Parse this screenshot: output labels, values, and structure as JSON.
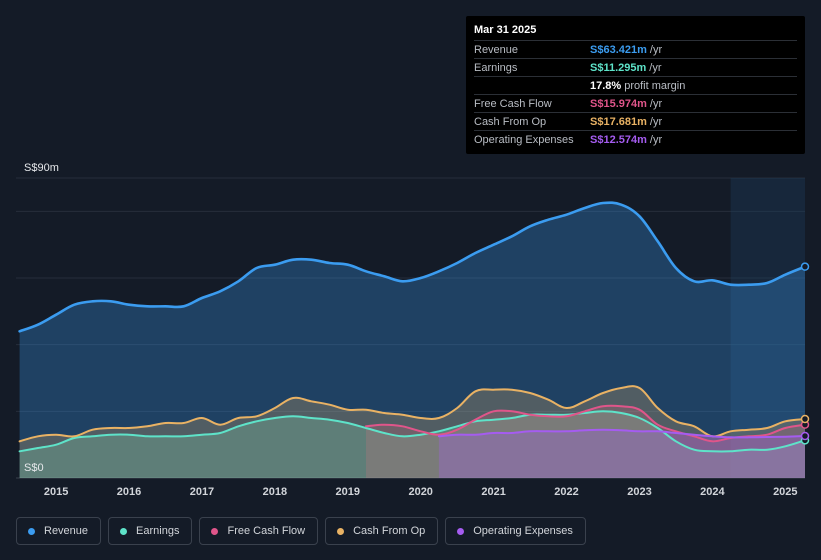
{
  "tooltip": {
    "date": "Mar 31 2025",
    "rows": [
      {
        "label": "Revenue",
        "value": "S$63.421m",
        "unit": "/yr",
        "color": "#3b9cf0"
      },
      {
        "label": "Earnings",
        "value": "S$11.295m",
        "unit": "/yr",
        "color": "#5ee3c9"
      },
      {
        "label": "",
        "value": "17.8%",
        "unit": "profit margin",
        "color": "#ffffff"
      },
      {
        "label": "Free Cash Flow",
        "value": "S$15.974m",
        "unit": "/yr",
        "color": "#e0558a"
      },
      {
        "label": "Cash From Op",
        "value": "S$17.681m",
        "unit": "/yr",
        "color": "#e9b264"
      },
      {
        "label": "Operating Expenses",
        "value": "S$12.574m",
        "unit": "/yr",
        "color": "#a55cf0"
      }
    ]
  },
  "legend": [
    {
      "label": "Revenue",
      "color": "#3b9cf0"
    },
    {
      "label": "Earnings",
      "color": "#5ee3c9"
    },
    {
      "label": "Free Cash Flow",
      "color": "#e0558a"
    },
    {
      "label": "Cash From Op",
      "color": "#e9b264"
    },
    {
      "label": "Operating Expenses",
      "color": "#a55cf0"
    }
  ],
  "chart_data": {
    "type": "area",
    "title": "",
    "xlabel": "",
    "ylabel": "",
    "ylim": [
      0,
      90
    ],
    "xlim": [
      2014.45,
      2025.27
    ],
    "y_tick_labels": [
      {
        "value": 90,
        "label": "S$90m"
      },
      {
        "value": 0,
        "label": "S$0"
      }
    ],
    "x_tick_labels": [
      "2015",
      "2016",
      "2017",
      "2018",
      "2019",
      "2020",
      "2021",
      "2022",
      "2023",
      "2024",
      "2025"
    ],
    "x_ticks": [
      2015,
      2016,
      2017,
      2018,
      2019,
      2020,
      2021,
      2022,
      2023,
      2024,
      2025
    ],
    "forecast_region_start": 2024.25,
    "series": [
      {
        "name": "Revenue",
        "color": "#3b9cf0",
        "x": [
          2014.5,
          2014.75,
          2015.0,
          2015.25,
          2015.5,
          2015.75,
          2016.0,
          2016.25,
          2016.5,
          2016.75,
          2017.0,
          2017.25,
          2017.5,
          2017.75,
          2018.0,
          2018.25,
          2018.5,
          2018.75,
          2019.0,
          2019.25,
          2019.5,
          2019.75,
          2020.0,
          2020.25,
          2020.5,
          2020.75,
          2021.0,
          2021.25,
          2021.5,
          2021.75,
          2022.0,
          2022.25,
          2022.5,
          2022.75,
          2023.0,
          2023.25,
          2023.5,
          2023.75,
          2024.0,
          2024.25,
          2024.5,
          2024.75,
          2025.0,
          2025.27
        ],
        "values": [
          44,
          46,
          49,
          52,
          53,
          53,
          52,
          51.5,
          51.5,
          51.5,
          54,
          56,
          59,
          63,
          64,
          65.5,
          65.5,
          64.5,
          64,
          62,
          60.5,
          59,
          60,
          62,
          64.5,
          67.5,
          70,
          72.5,
          75.5,
          77.5,
          79,
          81,
          82.5,
          82,
          78.5,
          71,
          63,
          59,
          59.3,
          58,
          58,
          58.5,
          61,
          63.4
        ]
      },
      {
        "name": "Earnings",
        "color": "#5ee3c9",
        "x": [
          2014.5,
          2014.75,
          2015.0,
          2015.25,
          2015.5,
          2015.75,
          2016.0,
          2016.25,
          2016.5,
          2016.75,
          2017.0,
          2017.25,
          2017.5,
          2017.75,
          2018.0,
          2018.25,
          2018.5,
          2018.75,
          2019.0,
          2019.25,
          2019.5,
          2019.75,
          2020.0,
          2020.25,
          2020.5,
          2020.75,
          2021.0,
          2021.25,
          2021.5,
          2021.75,
          2022.0,
          2022.25,
          2022.5,
          2022.75,
          2023.0,
          2023.25,
          2023.5,
          2023.75,
          2024.0,
          2024.25,
          2024.5,
          2024.75,
          2025.0,
          2025.27
        ],
        "values": [
          8,
          9,
          10,
          12,
          12.5,
          13,
          13,
          12.5,
          12.5,
          12.5,
          13,
          13.5,
          15.5,
          17,
          18,
          18.5,
          18,
          17.5,
          16.5,
          15,
          13.5,
          12.5,
          13,
          14,
          15.5,
          17,
          17.5,
          18,
          19,
          19,
          19,
          19.5,
          20,
          19.5,
          18,
          15,
          11,
          8.5,
          8,
          8,
          8.5,
          8.5,
          9.5,
          11.3
        ]
      },
      {
        "name": "Free Cash Flow",
        "color": "#e0558a",
        "x": [
          2019.25,
          2019.5,
          2019.75,
          2020.0,
          2020.25,
          2020.5,
          2020.75,
          2021.0,
          2021.25,
          2021.5,
          2021.75,
          2022.0,
          2022.25,
          2022.5,
          2022.75,
          2023.0,
          2023.25,
          2023.5,
          2023.75,
          2024.0,
          2024.25,
          2024.5,
          2024.75,
          2025.0,
          2025.27
        ],
        "values": [
          15.5,
          16,
          15.5,
          14,
          13,
          14.5,
          17.5,
          20,
          20,
          19,
          18.5,
          18.5,
          20,
          21.5,
          21.5,
          20.5,
          16,
          14,
          12.5,
          11,
          12,
          12.5,
          13,
          15,
          16
        ]
      },
      {
        "name": "Cash From Op",
        "color": "#e9b264",
        "x": [
          2014.5,
          2014.75,
          2015.0,
          2015.25,
          2015.5,
          2015.75,
          2016.0,
          2016.25,
          2016.5,
          2016.75,
          2017.0,
          2017.25,
          2017.5,
          2017.75,
          2018.0,
          2018.25,
          2018.5,
          2018.75,
          2019.0,
          2019.25,
          2019.5,
          2019.75,
          2020.0,
          2020.25,
          2020.5,
          2020.75,
          2021.0,
          2021.25,
          2021.5,
          2021.75,
          2022.0,
          2022.25,
          2022.5,
          2022.75,
          2023.0,
          2023.25,
          2023.5,
          2023.75,
          2024.0,
          2024.25,
          2024.5,
          2024.75,
          2025.0,
          2025.27
        ],
        "values": [
          11,
          12.5,
          13,
          12.5,
          14.5,
          15,
          15,
          15.5,
          16.5,
          16.5,
          18,
          16,
          18,
          18.5,
          21,
          24,
          23,
          22,
          20.5,
          20.5,
          19.5,
          19,
          18,
          18,
          21,
          26,
          26.5,
          26.5,
          25.5,
          23.5,
          21,
          23,
          25.5,
          27,
          27,
          21,
          17,
          15.5,
          12.5,
          14,
          14.5,
          15,
          17,
          17.7
        ]
      },
      {
        "name": "Operating Expenses",
        "color": "#a55cf0",
        "x": [
          2020.25,
          2020.5,
          2020.75,
          2021.0,
          2021.25,
          2021.5,
          2021.75,
          2022.0,
          2022.25,
          2022.5,
          2022.75,
          2023.0,
          2023.25,
          2023.5,
          2023.75,
          2024.0,
          2024.25,
          2024.5,
          2024.75,
          2025.0,
          2025.27
        ],
        "values": [
          12.5,
          13,
          13,
          13.5,
          13.5,
          14,
          14,
          14,
          14.3,
          14.5,
          14.3,
          14,
          14,
          13.5,
          13,
          12.5,
          12.2,
          12.2,
          12.3,
          12.4,
          12.6
        ]
      }
    ]
  }
}
